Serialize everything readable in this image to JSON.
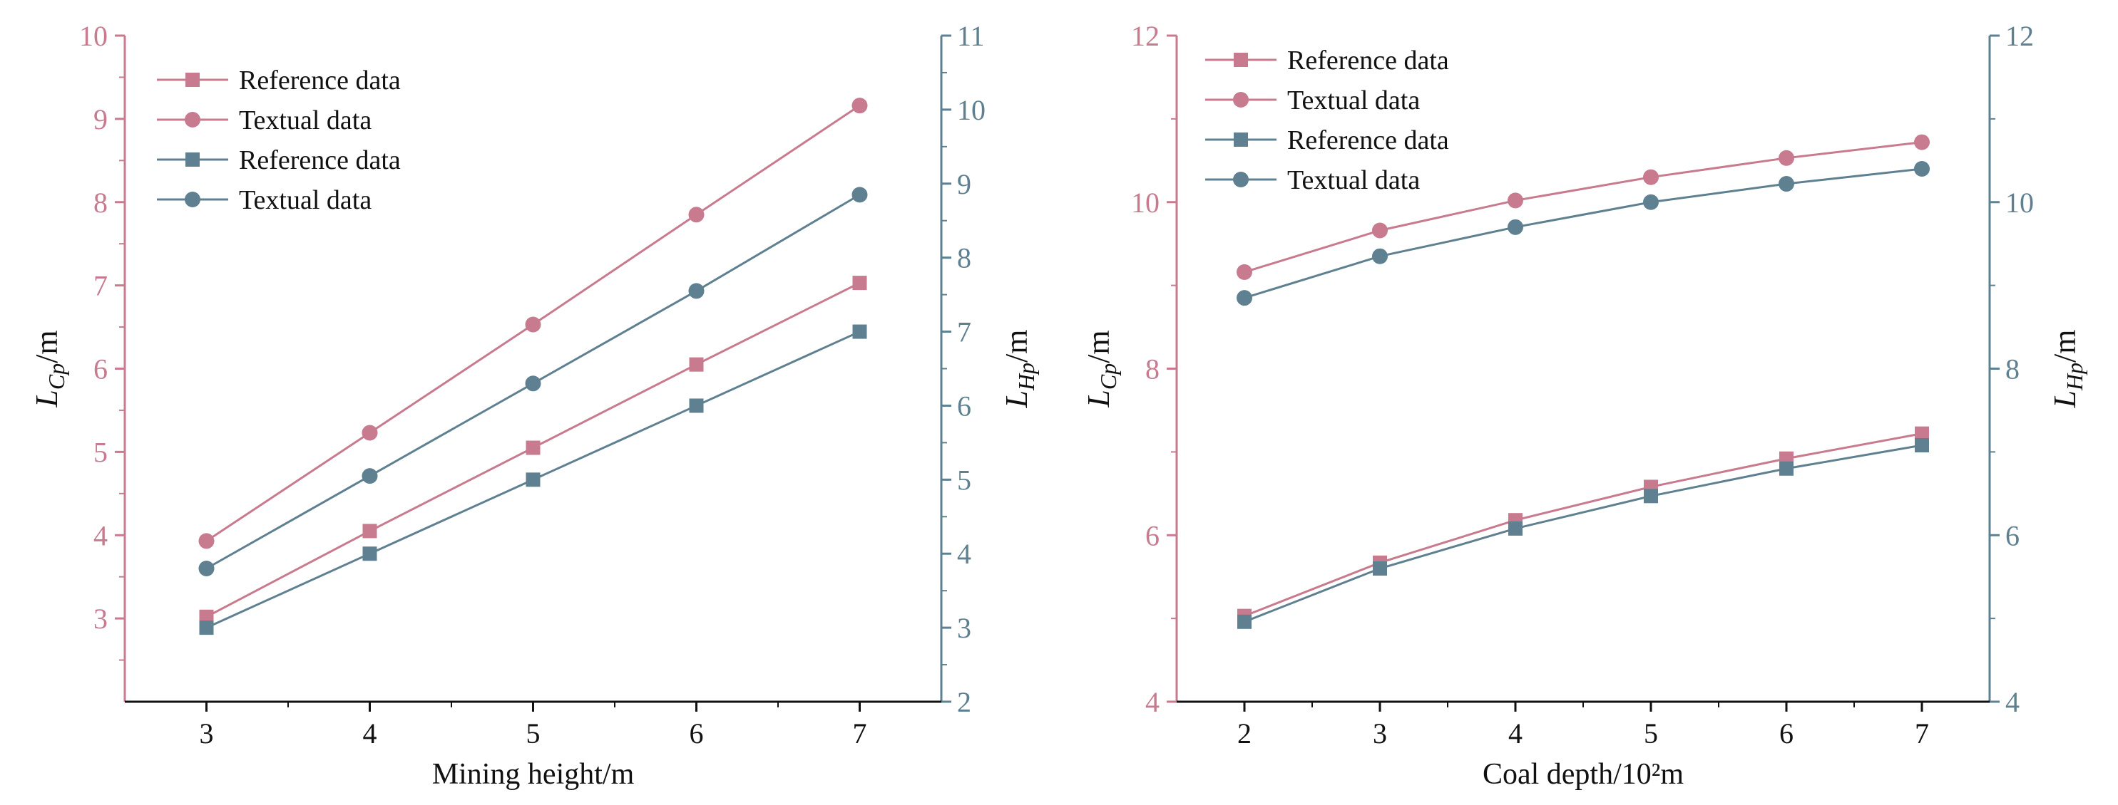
{
  "colors": {
    "pink": "#c87a8e",
    "blue": "#5e8090",
    "black": "#111111"
  },
  "chart_data": [
    {
      "type": "line",
      "xlabel": "Mining height/m",
      "ylabel_left": {
        "main": "L",
        "sub": "Cp",
        "unit": "/m"
      },
      "ylabel_right": {
        "main": "L",
        "sub": "Hp",
        "unit": "/m"
      },
      "xlim": [
        2.5,
        7.5
      ],
      "ylim_left": [
        2,
        10
      ],
      "ylim_right": [
        2,
        11
      ],
      "x_ticks": [
        3,
        4,
        5,
        6,
        7
      ],
      "x_tick_labels": [
        "3",
        "4",
        "5",
        "6",
        "7"
      ],
      "left_ticks": [
        3,
        4,
        5,
        6,
        7,
        8,
        9,
        10
      ],
      "left_tick_labels": [
        "3",
        "4",
        "5",
        "6",
        "7",
        "8",
        "9",
        "10"
      ],
      "right_ticks": [
        2,
        3,
        4,
        5,
        6,
        7,
        8,
        9,
        10,
        11
      ],
      "right_tick_labels": [
        "2",
        "3",
        "4",
        "5",
        "6",
        "7",
        "8",
        "9",
        "10",
        "11"
      ],
      "legend": "top-left",
      "series": [
        {
          "name": "Reference data",
          "axis": "left",
          "color": "pink",
          "marker": "square",
          "x": [
            3,
            4,
            5,
            6,
            7
          ],
          "values": [
            3.02,
            4.05,
            5.05,
            6.05,
            7.03
          ]
        },
        {
          "name": "Textual data",
          "axis": "left",
          "color": "pink",
          "marker": "circle",
          "x": [
            3,
            4,
            5,
            6,
            7
          ],
          "values": [
            3.93,
            5.23,
            6.53,
            7.85,
            9.16
          ]
        },
        {
          "name": "Reference data",
          "axis": "right",
          "color": "blue",
          "marker": "square",
          "x": [
            3,
            4,
            5,
            6,
            7
          ],
          "values": [
            3.0,
            4.0,
            5.0,
            6.0,
            7.0
          ]
        },
        {
          "name": "Textual data",
          "axis": "right",
          "color": "blue",
          "marker": "circle",
          "x": [
            3,
            4,
            5,
            6,
            7
          ],
          "values": [
            3.8,
            5.05,
            6.3,
            7.55,
            8.85
          ]
        }
      ]
    },
    {
      "type": "line",
      "xlabel": "Coal depth/10²m",
      "ylabel_left": {
        "main": "L",
        "sub": "Cp",
        "unit": "/m"
      },
      "ylabel_right": {
        "main": "L",
        "sub": "Hp",
        "unit": "/m"
      },
      "xlim": [
        1.5,
        7.5
      ],
      "ylim_left": [
        4,
        12
      ],
      "ylim_right": [
        4,
        12
      ],
      "x_ticks": [
        2,
        3,
        4,
        5,
        6,
        7
      ],
      "x_tick_labels": [
        "2",
        "3",
        "4",
        "5",
        "6",
        "7"
      ],
      "left_ticks": [
        4,
        6,
        8,
        10,
        12
      ],
      "left_tick_labels": [
        "4",
        "6",
        "8",
        "10",
        "12"
      ],
      "right_ticks": [
        4,
        6,
        8,
        10,
        12
      ],
      "right_tick_labels": [
        "4",
        "6",
        "8",
        "10",
        "12"
      ],
      "legend": "top-left",
      "series": [
        {
          "name": "Reference data",
          "axis": "left",
          "color": "pink",
          "marker": "square",
          "x": [
            2,
            3,
            4,
            5,
            6,
            7
          ],
          "values": [
            5.03,
            5.67,
            6.18,
            6.58,
            6.92,
            7.22
          ]
        },
        {
          "name": "Textual data",
          "axis": "left",
          "color": "pink",
          "marker": "circle",
          "x": [
            2,
            3,
            4,
            5,
            6,
            7
          ],
          "values": [
            9.16,
            9.66,
            10.02,
            10.3,
            10.53,
            10.72
          ]
        },
        {
          "name": "Reference data",
          "axis": "right",
          "color": "blue",
          "marker": "square",
          "x": [
            2,
            3,
            4,
            5,
            6,
            7
          ],
          "values": [
            4.96,
            5.6,
            6.08,
            6.47,
            6.8,
            7.08
          ]
        },
        {
          "name": "Textual data",
          "axis": "right",
          "color": "blue",
          "marker": "circle",
          "x": [
            2,
            3,
            4,
            5,
            6,
            7
          ],
          "values": [
            8.85,
            9.35,
            9.7,
            10.0,
            10.22,
            10.4
          ]
        }
      ]
    }
  ]
}
